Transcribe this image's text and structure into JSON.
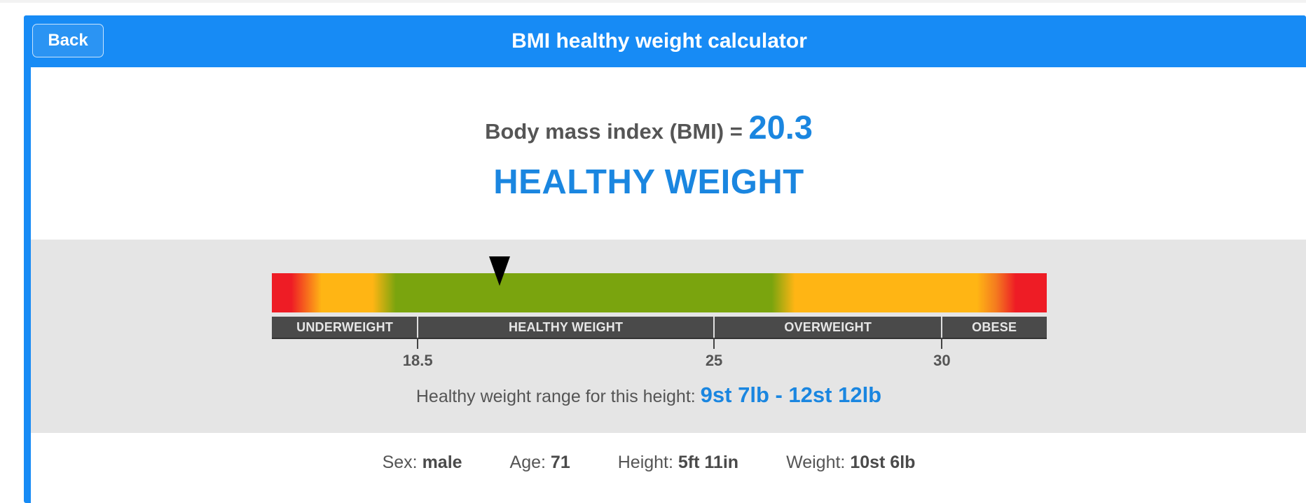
{
  "header": {
    "title": "BMI healthy weight calculator",
    "back_label": "Back"
  },
  "result": {
    "bmi_label": "Body mass index (BMI) =",
    "bmi_value": "20.3",
    "category": "HEALTHY WEIGHT"
  },
  "scale": {
    "min": 15.3,
    "max": 32.3,
    "marker_value": 20.3,
    "segments": [
      {
        "label": "UNDERWEIGHT",
        "from": 15.3,
        "to": 18.5
      },
      {
        "label": "HEALTHY WEIGHT",
        "from": 18.5,
        "to": 25
      },
      {
        "label": "OVERWEIGHT",
        "from": 25,
        "to": 30
      },
      {
        "label": "OBESE",
        "from": 30,
        "to": 32.3
      }
    ],
    "ticks": [
      "18.5",
      "25",
      "30"
    ],
    "colors": {
      "red": "#ee1c25",
      "amber": "#ffb514",
      "green": "#7aa40e"
    }
  },
  "range": {
    "label": "Healthy weight range for this height:",
    "value": "9st 7lb - 12st 12lb"
  },
  "details": {
    "sex_label": "Sex:",
    "sex_value": "male",
    "age_label": "Age:",
    "age_value": "71",
    "height_label": "Height:",
    "height_value": "5ft 11in",
    "weight_label": "Weight:",
    "weight_value": "10st 6lb"
  },
  "colors": {
    "brand_blue": "#178bf5",
    "accent_blue": "#1a86e0"
  }
}
